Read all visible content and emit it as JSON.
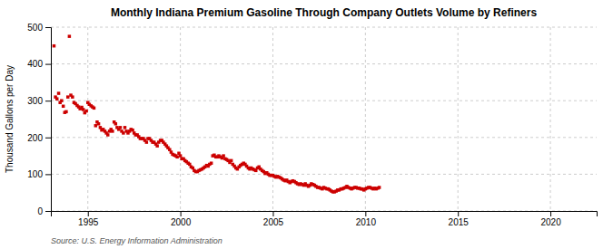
{
  "chart_data": {
    "type": "scatter",
    "title": "Monthly Indiana Premium Gasoline Through Company Outlets Volume by Refiners",
    "ylabel": "Thousand Gallons per Day",
    "annotations": [
      "Source: U.S. Energy Information Administration"
    ],
    "color": "#cc0000",
    "marker": "square",
    "grid": true,
    "xlim": [
      1993.0,
      2022.5
    ],
    "ylim": [
      0,
      500
    ],
    "xticks": [
      1995,
      2000,
      2005,
      2010,
      2015,
      2020
    ],
    "yticks": [
      0,
      100,
      200,
      300,
      400,
      500
    ],
    "x": [
      1993.17,
      1993.25,
      1993.33,
      1993.42,
      1993.5,
      1993.58,
      1993.67,
      1993.75,
      1993.83,
      1993.92,
      1994.0,
      1994.08,
      1994.17,
      1994.25,
      1994.33,
      1994.42,
      1994.5,
      1994.58,
      1994.67,
      1994.75,
      1994.83,
      1994.92,
      1995.0,
      1995.08,
      1995.17,
      1995.25,
      1995.33,
      1995.42,
      1995.5,
      1995.58,
      1995.67,
      1995.75,
      1995.83,
      1995.92,
      1996.0,
      1996.08,
      1996.17,
      1996.25,
      1996.33,
      1996.42,
      1996.5,
      1996.58,
      1996.67,
      1996.75,
      1996.83,
      1996.92,
      1997.0,
      1997.08,
      1997.17,
      1997.25,
      1997.33,
      1997.42,
      1997.5,
      1997.58,
      1997.67,
      1997.75,
      1997.83,
      1997.92,
      1998.0,
      1998.08,
      1998.17,
      1998.25,
      1998.33,
      1998.42,
      1998.5,
      1998.58,
      1998.67,
      1998.75,
      1998.83,
      1998.92,
      1999.0,
      1999.08,
      1999.17,
      1999.25,
      1999.33,
      1999.42,
      1999.5,
      1999.58,
      1999.67,
      1999.75,
      1999.83,
      1999.92,
      2000.0,
      2000.08,
      2000.17,
      2000.25,
      2000.33,
      2000.42,
      2000.5,
      2000.58,
      2000.67,
      2000.75,
      2000.83,
      2000.92,
      2001.0,
      2001.08,
      2001.17,
      2001.25,
      2001.33,
      2001.42,
      2001.5,
      2001.58,
      2001.67,
      2001.75,
      2001.83,
      2001.92,
      2002.0,
      2002.08,
      2002.17,
      2002.25,
      2002.33,
      2002.42,
      2002.5,
      2002.58,
      2002.67,
      2002.75,
      2002.83,
      2002.92,
      2003.0,
      2003.08,
      2003.17,
      2003.25,
      2003.33,
      2003.42,
      2003.5,
      2003.58,
      2003.67,
      2003.75,
      2003.83,
      2003.92,
      2004.0,
      2004.08,
      2004.17,
      2004.25,
      2004.33,
      2004.42,
      2004.5,
      2004.58,
      2004.67,
      2004.75,
      2004.83,
      2004.92,
      2005.0,
      2005.08,
      2005.17,
      2005.25,
      2005.33,
      2005.42,
      2005.5,
      2005.58,
      2005.67,
      2005.75,
      2005.83,
      2005.92,
      2006.0,
      2006.08,
      2006.17,
      2006.25,
      2006.33,
      2006.42,
      2006.5,
      2006.58,
      2006.67,
      2006.75,
      2006.83,
      2006.92,
      2007.0,
      2007.08,
      2007.17,
      2007.25,
      2007.33,
      2007.42,
      2007.5,
      2007.58,
      2007.67,
      2007.75,
      2007.83,
      2007.92,
      2008.0,
      2008.08,
      2008.17,
      2008.25,
      2008.33,
      2008.42,
      2008.5,
      2008.58,
      2008.67,
      2008.75,
      2008.83,
      2008.92,
      2009.0,
      2009.08,
      2009.17,
      2009.25,
      2009.33,
      2009.42,
      2009.5,
      2009.58,
      2009.67,
      2009.75,
      2009.83,
      2009.92,
      2010.0,
      2010.08,
      2010.17,
      2010.25,
      2010.33,
      2010.42,
      2010.5,
      2010.58,
      2010.67,
      2010.75
    ],
    "values": [
      449,
      310,
      305,
      320,
      295,
      300,
      285,
      268,
      270,
      310,
      475,
      315,
      310,
      295,
      292,
      287,
      283,
      278,
      282,
      276,
      267,
      272,
      295,
      290,
      286,
      283,
      280,
      232,
      242,
      237,
      227,
      220,
      222,
      217,
      212,
      207,
      217,
      222,
      217,
      242,
      237,
      227,
      222,
      227,
      217,
      212,
      227,
      217,
      212,
      217,
      222,
      220,
      212,
      207,
      207,
      202,
      197,
      197,
      197,
      192,
      187,
      197,
      197,
      192,
      187,
      187,
      182,
      177,
      187,
      192,
      192,
      187,
      182,
      177,
      172,
      167,
      160,
      154,
      152,
      150,
      147,
      157,
      150,
      142,
      142,
      137,
      134,
      130,
      127,
      120,
      117,
      110,
      107,
      107,
      110,
      112,
      114,
      117,
      120,
      124,
      122,
      127,
      130,
      150,
      152,
      147,
      147,
      150,
      147,
      144,
      150,
      142,
      140,
      137,
      132,
      137,
      127,
      122,
      117,
      114,
      120,
      124,
      127,
      130,
      127,
      122,
      117,
      114,
      117,
      114,
      112,
      110,
      117,
      120,
      114,
      110,
      107,
      102,
      104,
      100,
      97,
      97,
      97,
      94,
      92,
      94,
      92,
      90,
      87,
      84,
      82,
      84,
      80,
      77,
      80,
      82,
      80,
      77,
      74,
      72,
      74,
      72,
      70,
      74,
      70,
      67,
      70,
      74,
      72,
      70,
      67,
      64,
      64,
      62,
      60,
      64,
      62,
      60,
      60,
      57,
      54,
      52,
      52,
      54,
      57,
      57,
      60,
      60,
      62,
      64,
      67,
      64,
      62,
      60,
      62,
      64,
      64,
      62,
      62,
      60,
      60,
      57,
      60,
      62,
      64,
      64,
      62,
      60,
      62,
      60,
      62,
      64
    ]
  }
}
